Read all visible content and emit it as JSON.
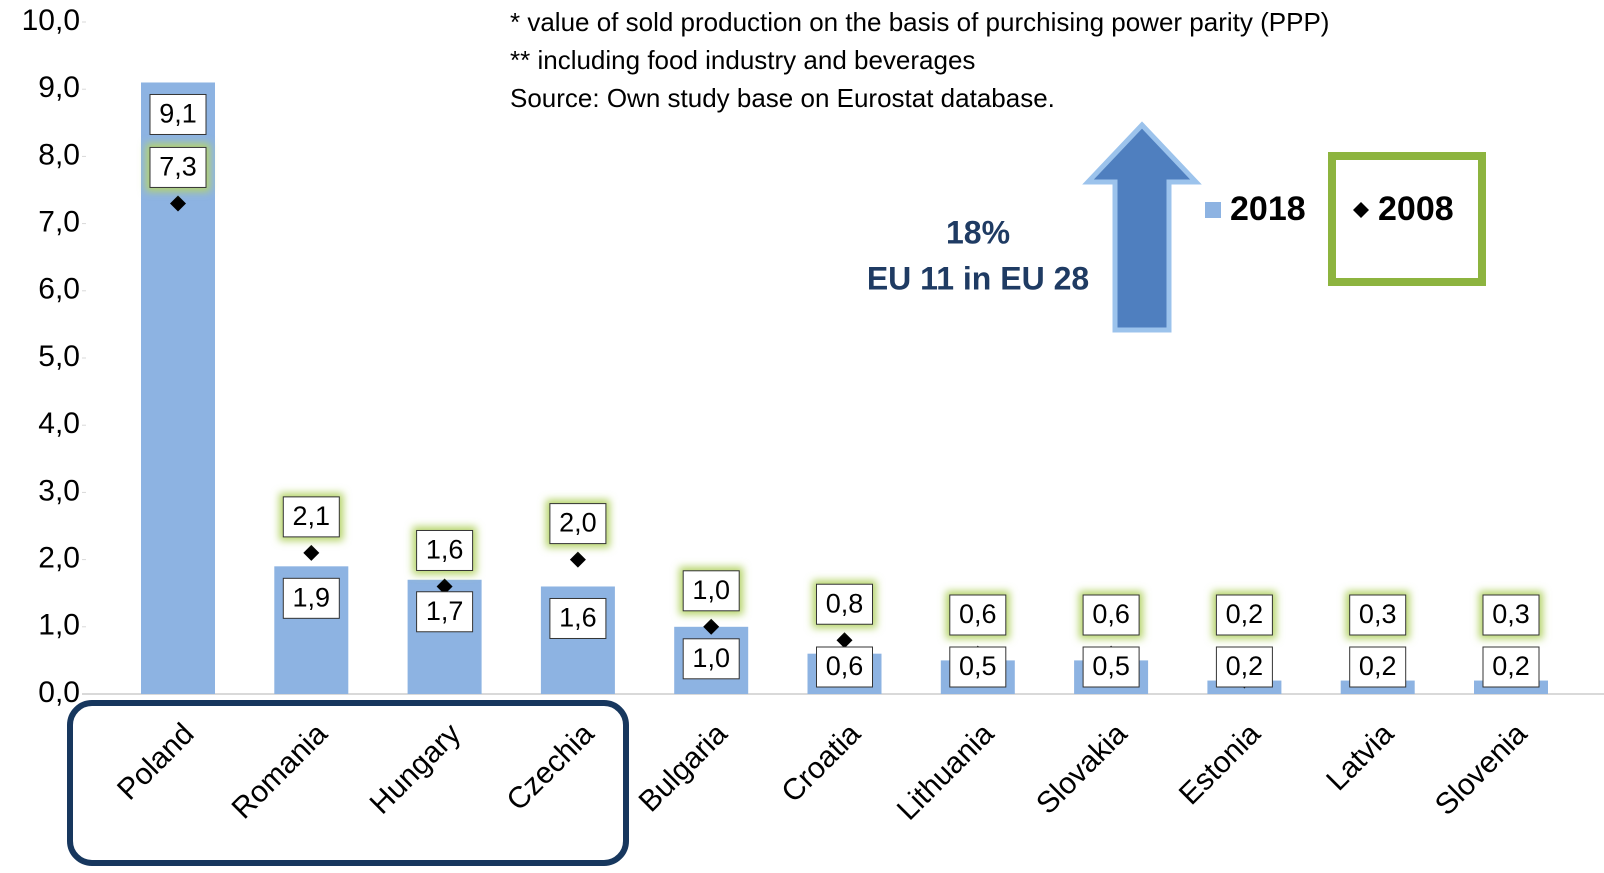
{
  "chart_data": {
    "type": "bar",
    "notes": [
      "*   value of sold production on the basis of purchising power parity (PPP)",
      "** including food industry and beverages",
      "Source: Own  study base on Eurostat database."
    ],
    "annotation": [
      "18%",
      "EU 11 in EU 28"
    ],
    "categories": [
      "Poland",
      "Romania",
      "Hungary",
      "Czechia",
      "Bulgaria",
      "Croatia",
      "Lithuania",
      "Slovakia",
      "Estonia",
      "Latvia",
      "Slovenia"
    ],
    "series": [
      {
        "name": "2018",
        "color": "#8db3e2",
        "mark": "bar",
        "values": [
          9.1,
          1.9,
          1.7,
          1.6,
          1.0,
          0.6,
          0.5,
          0.5,
          0.2,
          0.2,
          0.2
        ],
        "value_labels": [
          "9,1",
          "1,9",
          "1,7",
          "1,6",
          "1,0",
          "0,6",
          "0,5",
          "0,5",
          "0,2",
          "0,2",
          "0,2"
        ]
      },
      {
        "name": "2008",
        "color": "#000000",
        "mark": "diamond",
        "values": [
          7.3,
          2.1,
          1.6,
          2.0,
          1.0,
          0.8,
          0.6,
          0.6,
          0.2,
          0.3,
          0.3
        ],
        "value_labels": [
          "7,3",
          "2,1",
          "1,6",
          "2,0",
          "1,0",
          "0,8",
          "0,6",
          "0,6",
          "0,2",
          "0,3",
          "0,3"
        ]
      }
    ],
    "ylim": [
      0,
      10
    ],
    "yticks": [
      {
        "value": 0,
        "label": "0,0"
      },
      {
        "value": 1,
        "label": "1,0"
      },
      {
        "value": 2,
        "label": "2,0"
      },
      {
        "value": 3,
        "label": "3,0"
      },
      {
        "value": 4,
        "label": "4,0"
      },
      {
        "value": 5,
        "label": "5,0"
      },
      {
        "value": 6,
        "label": "6,0"
      },
      {
        "value": 7,
        "label": "7,0"
      },
      {
        "value": 8,
        "label": "8,0"
      },
      {
        "value": 9,
        "label": "9,0"
      },
      {
        "value": 10,
        "label": "10,0"
      }
    ],
    "grid": false
  }
}
